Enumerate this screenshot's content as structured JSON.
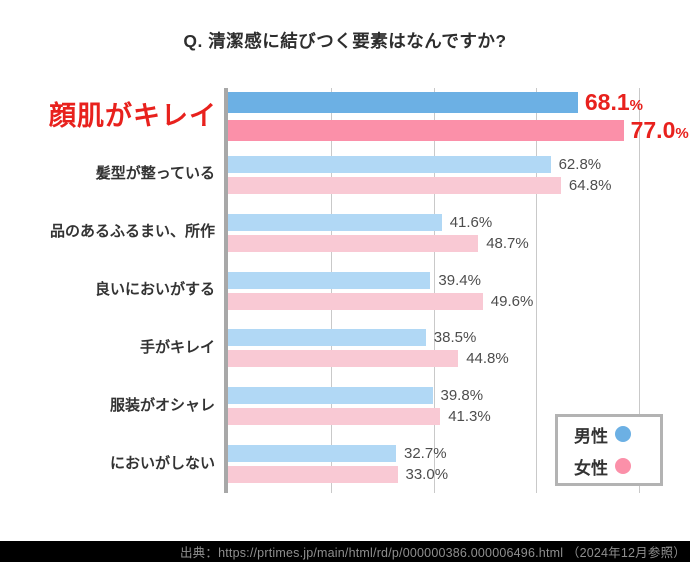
{
  "title": "Q. 清潔感に結びつく要素はなんですか?",
  "colors": {
    "male": "#6cb0e4",
    "female": "#fb90a9",
    "male_light": "#b1d8f5",
    "female_light": "#f9c9d4",
    "highlight_red": "#e8211d",
    "value_text": "#4d4d4d",
    "axis": "#a8a8a8",
    "gridline": "#c9c9c9",
    "footer_bg": "#000000",
    "footer_text": "#8f8f8f"
  },
  "chart_data": {
    "type": "bar",
    "orientation": "horizontal",
    "title": "Q. 清潔感に結びつく要素はなんですか?",
    "series_names": [
      "男性",
      "女性"
    ],
    "xlim": [
      0,
      80
    ],
    "gridline_step_pct": 20,
    "grid": true,
    "legend_position": "bottom-right",
    "percent_sign": "%",
    "highlighted_category": "顔肌がキレイ",
    "categories": [
      "顔肌がキレイ",
      "髪型が整っている",
      "品のあるふるまい、所作",
      "良いにおいがする",
      "手がキレイ",
      "服装がオシャレ",
      "においがしない"
    ],
    "series": [
      {
        "name": "男性",
        "values": [
          68.1,
          62.8,
          41.6,
          39.4,
          38.5,
          39.8,
          32.7
        ]
      },
      {
        "name": "女性",
        "values": [
          77.0,
          64.8,
          48.7,
          49.6,
          44.8,
          41.3,
          33.0
        ]
      }
    ],
    "rows": [
      {
        "category": "顔肌がキレイ",
        "male": 68.1,
        "female": 77.0,
        "male_display": "68.1",
        "female_display": "77.0",
        "highlight": true
      },
      {
        "category": "髪型が整っている",
        "male": 62.8,
        "female": 64.8,
        "male_display": "62.8",
        "female_display": "64.8",
        "highlight": false
      },
      {
        "category": "品のあるふるまい、所作",
        "male": 41.6,
        "female": 48.7,
        "male_display": "41.6",
        "female_display": "48.7",
        "highlight": false
      },
      {
        "category": "良いにおいがする",
        "male": 39.4,
        "female": 49.6,
        "male_display": "39.4",
        "female_display": "49.6",
        "highlight": false
      },
      {
        "category": "手がキレイ",
        "male": 38.5,
        "female": 44.8,
        "male_display": "38.5",
        "female_display": "44.8",
        "highlight": false
      },
      {
        "category": "服装がオシャレ",
        "male": 39.8,
        "female": 41.3,
        "male_display": "39.8",
        "female_display": "41.3",
        "highlight": false
      },
      {
        "category": "においがしない",
        "male": 32.7,
        "female": 33.0,
        "male_display": "32.7",
        "female_display": "33.0",
        "highlight": false
      }
    ]
  },
  "legend": {
    "male_label": "男性",
    "female_label": "女性"
  },
  "footer": {
    "source_text": "出典：https://prtimes.jp/main/html/rd/p/000000386.000006496.html （2024年12月参照）"
  }
}
